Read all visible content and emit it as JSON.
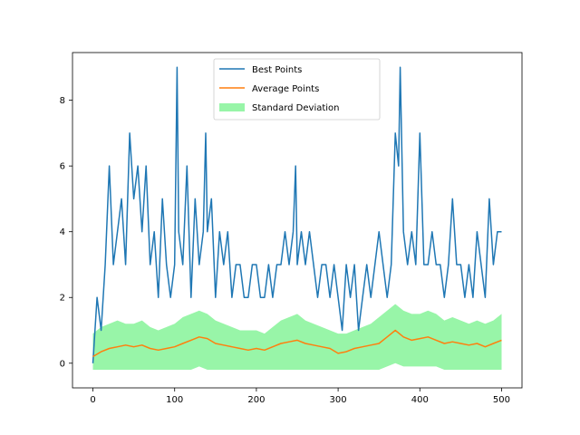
{
  "chart_data": {
    "type": "line",
    "title": "",
    "xlabel": "",
    "ylabel": "",
    "xlim": [
      -25,
      525
    ],
    "ylim": [
      -0.75,
      9.45
    ],
    "xticks": [
      0,
      100,
      200,
      300,
      400,
      500
    ],
    "yticks": [
      0,
      2,
      4,
      6,
      8
    ],
    "grid": false,
    "legend_position": "top-center",
    "colors": {
      "best": "#1f77b4",
      "average": "#ff7f0e",
      "std": "#98f5a8"
    },
    "series": [
      {
        "name": "Best Points",
        "kind": "line",
        "x": [
          0,
          5,
          10,
          15,
          20,
          25,
          30,
          35,
          40,
          45,
          50,
          55,
          60,
          65,
          70,
          75,
          80,
          85,
          90,
          95,
          100,
          103,
          105,
          110,
          115,
          120,
          125,
          130,
          135,
          138,
          140,
          145,
          150,
          155,
          160,
          165,
          170,
          175,
          180,
          185,
          190,
          195,
          200,
          205,
          210,
          215,
          220,
          225,
          230,
          235,
          240,
          245,
          248,
          250,
          255,
          260,
          265,
          270,
          275,
          280,
          285,
          290,
          295,
          300,
          305,
          310,
          315,
          320,
          325,
          330,
          335,
          340,
          345,
          350,
          355,
          360,
          365,
          370,
          374,
          376,
          380,
          385,
          390,
          395,
          400,
          405,
          410,
          415,
          420,
          425,
          430,
          435,
          440,
          445,
          450,
          455,
          460,
          465,
          470,
          475,
          480,
          485,
          490,
          495,
          500
        ],
        "y": [
          0,
          2,
          1,
          3,
          6,
          3,
          4,
          5,
          3,
          7,
          5,
          6,
          4,
          6,
          3,
          4,
          2,
          5,
          3,
          2,
          3,
          9,
          4,
          3,
          6,
          2,
          5,
          3,
          4,
          7,
          4,
          5,
          2,
          4,
          3,
          4,
          2,
          3,
          3,
          2,
          2,
          3,
          3,
          2,
          2,
          3,
          2,
          3,
          3,
          4,
          3,
          4,
          6,
          3,
          4,
          3,
          4,
          3,
          2,
          3,
          3,
          2,
          3,
          2,
          1,
          3,
          2,
          3,
          1,
          2,
          3,
          2,
          3,
          4,
          3,
          2,
          3,
          7,
          6,
          9,
          4,
          3,
          4,
          3,
          7,
          3,
          3,
          4,
          3,
          3,
          2,
          3,
          5,
          3,
          3,
          2,
          3,
          2,
          4,
          3,
          2,
          5,
          3,
          4,
          4
        ]
      },
      {
        "name": "Average Points",
        "kind": "line",
        "x": [
          0,
          10,
          20,
          30,
          40,
          50,
          60,
          70,
          80,
          90,
          100,
          110,
          120,
          130,
          140,
          150,
          160,
          170,
          180,
          190,
          200,
          210,
          220,
          230,
          240,
          250,
          260,
          270,
          280,
          290,
          300,
          310,
          320,
          330,
          340,
          350,
          360,
          370,
          380,
          390,
          400,
          410,
          420,
          430,
          440,
          450,
          460,
          470,
          480,
          490,
          500
        ],
        "y": [
          0.2,
          0.35,
          0.45,
          0.5,
          0.55,
          0.5,
          0.55,
          0.45,
          0.4,
          0.45,
          0.5,
          0.6,
          0.7,
          0.8,
          0.75,
          0.6,
          0.55,
          0.5,
          0.45,
          0.4,
          0.45,
          0.4,
          0.5,
          0.6,
          0.65,
          0.7,
          0.6,
          0.55,
          0.5,
          0.45,
          0.3,
          0.35,
          0.45,
          0.5,
          0.55,
          0.6,
          0.8,
          1.0,
          0.8,
          0.7,
          0.75,
          0.8,
          0.7,
          0.6,
          0.65,
          0.6,
          0.55,
          0.6,
          0.5,
          0.6,
          0.7
        ]
      },
      {
        "name": "Standard Deviation",
        "kind": "band",
        "x": [
          0,
          10,
          20,
          30,
          40,
          50,
          60,
          70,
          80,
          90,
          100,
          110,
          120,
          130,
          140,
          150,
          160,
          170,
          180,
          190,
          200,
          210,
          220,
          230,
          240,
          250,
          260,
          270,
          280,
          290,
          300,
          310,
          320,
          330,
          340,
          350,
          360,
          370,
          380,
          390,
          400,
          410,
          420,
          430,
          440,
          450,
          460,
          470,
          480,
          490,
          500
        ],
        "lower": [
          -0.2,
          -0.2,
          -0.2,
          -0.2,
          -0.2,
          -0.2,
          -0.2,
          -0.2,
          -0.2,
          -0.2,
          -0.2,
          -0.2,
          -0.2,
          -0.1,
          -0.2,
          -0.2,
          -0.2,
          -0.2,
          -0.2,
          -0.2,
          -0.2,
          -0.2,
          -0.2,
          -0.2,
          -0.2,
          -0.2,
          -0.2,
          -0.2,
          -0.2,
          -0.2,
          -0.2,
          -0.2,
          -0.2,
          -0.2,
          -0.2,
          -0.2,
          -0.1,
          0.0,
          -0.1,
          -0.1,
          -0.1,
          -0.1,
          -0.1,
          -0.2,
          -0.2,
          -0.2,
          -0.2,
          -0.2,
          -0.2,
          -0.2,
          -0.2
        ],
        "upper": [
          0.9,
          1.1,
          1.2,
          1.3,
          1.2,
          1.2,
          1.3,
          1.1,
          1.0,
          1.1,
          1.2,
          1.4,
          1.5,
          1.6,
          1.5,
          1.3,
          1.2,
          1.1,
          1.0,
          1.0,
          1.0,
          0.9,
          1.1,
          1.3,
          1.4,
          1.5,
          1.3,
          1.2,
          1.1,
          1.0,
          0.9,
          0.9,
          1.0,
          1.1,
          1.2,
          1.4,
          1.6,
          1.8,
          1.6,
          1.5,
          1.5,
          1.6,
          1.5,
          1.3,
          1.4,
          1.3,
          1.2,
          1.3,
          1.2,
          1.3,
          1.5
        ]
      }
    ]
  }
}
